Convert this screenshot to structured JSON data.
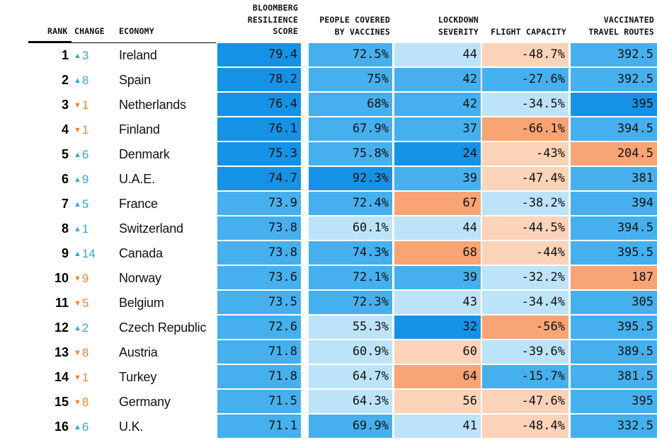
{
  "chart_data": {
    "type": "table",
    "colors": {
      "up": "#3ba2e4",
      "down": "#f5822a",
      "blue_dark": "#1592e6",
      "blue_mid": "#46b0ee",
      "blue_light": "#bde3f8",
      "orange_light": "#fbd3b8",
      "orange_dark": "#f9a474"
    },
    "headers": {
      "rank": "RANK",
      "change": "CHANGE",
      "economy": "ECONOMY",
      "score": [
        "BLOOMBERG",
        "RESILIENCE",
        "SCORE"
      ],
      "vaccines": [
        "PEOPLE COVERED",
        "BY VACCINES"
      ],
      "lockdown": [
        "LOCKDOWN",
        "SEVERITY"
      ],
      "flight": [
        "FLIGHT CAPACITY"
      ],
      "routes": [
        "VACCINATED",
        "TRAVEL ROUTES"
      ]
    },
    "rows": [
      {
        "rank": "1",
        "dir": "up",
        "change": "3",
        "economy": "Ireland",
        "score": "79.4",
        "vaccines": "72.5%",
        "lockdown": "44",
        "flight": "-48.7%",
        "routes": "392.5",
        "tones": [
          "blue_dark",
          "blue_mid",
          "blue_light",
          "orange_light",
          "blue_mid"
        ]
      },
      {
        "rank": "2",
        "dir": "up",
        "change": "8",
        "economy": "Spain",
        "score": "78.2",
        "vaccines": "75%",
        "lockdown": "42",
        "flight": "-27.6%",
        "routes": "392.5",
        "tones": [
          "blue_dark",
          "blue_mid",
          "blue_mid",
          "blue_mid",
          "blue_mid"
        ]
      },
      {
        "rank": "3",
        "dir": "down",
        "change": "1",
        "economy": "Netherlands",
        "score": "76.4",
        "vaccines": "68%",
        "lockdown": "42",
        "flight": "-34.5%",
        "routes": "395",
        "tones": [
          "blue_dark",
          "blue_mid",
          "blue_mid",
          "blue_light",
          "blue_dark"
        ]
      },
      {
        "rank": "4",
        "dir": "down",
        "change": "1",
        "economy": "Finland",
        "score": "76.1",
        "vaccines": "67.9%",
        "lockdown": "37",
        "flight": "-66.1%",
        "routes": "394.5",
        "tones": [
          "blue_dark",
          "blue_mid",
          "blue_mid",
          "orange_dark",
          "blue_mid"
        ]
      },
      {
        "rank": "5",
        "dir": "up",
        "change": "6",
        "economy": "Denmark",
        "score": "75.3",
        "vaccines": "75.8%",
        "lockdown": "24",
        "flight": "-43%",
        "routes": "204.5",
        "tones": [
          "blue_dark",
          "blue_mid",
          "blue_dark",
          "orange_light",
          "orange_dark"
        ]
      },
      {
        "rank": "6",
        "dir": "up",
        "change": "9",
        "economy": "U.A.E.",
        "score": "74.7",
        "vaccines": "92.3%",
        "lockdown": "39",
        "flight": "-47.4%",
        "routes": "381",
        "tones": [
          "blue_dark",
          "blue_dark",
          "blue_mid",
          "orange_light",
          "blue_mid"
        ]
      },
      {
        "rank": "7",
        "dir": "up",
        "change": "5",
        "economy": "France",
        "score": "73.9",
        "vaccines": "72.4%",
        "lockdown": "67",
        "flight": "-38.2%",
        "routes": "394",
        "tones": [
          "blue_mid",
          "blue_mid",
          "orange_dark",
          "blue_light",
          "blue_mid"
        ]
      },
      {
        "rank": "8",
        "dir": "up",
        "change": "1",
        "economy": "Switzerland",
        "score": "73.8",
        "vaccines": "60.1%",
        "lockdown": "44",
        "flight": "-44.5%",
        "routes": "394.5",
        "tones": [
          "blue_mid",
          "blue_light",
          "blue_light",
          "orange_light",
          "blue_mid"
        ]
      },
      {
        "rank": "9",
        "dir": "up",
        "change": "14",
        "economy": "Canada",
        "score": "73.8",
        "vaccines": "74.3%",
        "lockdown": "68",
        "flight": "-44%",
        "routes": "395.5",
        "tones": [
          "blue_mid",
          "blue_mid",
          "orange_dark",
          "orange_light",
          "blue_mid"
        ]
      },
      {
        "rank": "10",
        "dir": "down",
        "change": "9",
        "economy": "Norway",
        "score": "73.6",
        "vaccines": "72.1%",
        "lockdown": "39",
        "flight": "-32.2%",
        "routes": "187",
        "tones": [
          "blue_mid",
          "blue_mid",
          "blue_mid",
          "blue_light",
          "orange_dark"
        ]
      },
      {
        "rank": "11",
        "dir": "down",
        "change": "5",
        "economy": "Belgium",
        "score": "73.5",
        "vaccines": "72.3%",
        "lockdown": "43",
        "flight": "-34.4%",
        "routes": "305",
        "tones": [
          "blue_mid",
          "blue_mid",
          "blue_light",
          "blue_light",
          "blue_mid"
        ]
      },
      {
        "rank": "12",
        "dir": "up",
        "change": "2",
        "economy": "Czech Republic",
        "score": "72.6",
        "vaccines": "55.3%",
        "lockdown": "32",
        "flight": "-56%",
        "routes": "395.5",
        "tones": [
          "blue_mid",
          "blue_light",
          "blue_dark",
          "orange_dark",
          "blue_mid"
        ]
      },
      {
        "rank": "13",
        "dir": "down",
        "change": "8",
        "economy": "Austria",
        "score": "71.8",
        "vaccines": "60.9%",
        "lockdown": "60",
        "flight": "-39.6%",
        "routes": "389.5",
        "tones": [
          "blue_mid",
          "blue_light",
          "orange_light",
          "blue_light",
          "blue_mid"
        ]
      },
      {
        "rank": "14",
        "dir": "down",
        "change": "1",
        "economy": "Turkey",
        "score": "71.8",
        "vaccines": "64.7%",
        "lockdown": "64",
        "flight": "-15.7%",
        "routes": "381.5",
        "tones": [
          "blue_mid",
          "blue_light",
          "orange_dark",
          "blue_mid",
          "blue_mid"
        ]
      },
      {
        "rank": "15",
        "dir": "down",
        "change": "8",
        "economy": "Germany",
        "score": "71.5",
        "vaccines": "64.3%",
        "lockdown": "56",
        "flight": "-47.6%",
        "routes": "395",
        "tones": [
          "blue_mid",
          "blue_light",
          "orange_light",
          "orange_light",
          "blue_mid"
        ]
      },
      {
        "rank": "16",
        "dir": "up",
        "change": "6",
        "economy": "U.K.",
        "score": "71.1",
        "vaccines": "69.9%",
        "lockdown": "41",
        "flight": "-48.4%",
        "routes": "332.5",
        "tones": [
          "blue_mid",
          "blue_mid",
          "blue_light",
          "orange_light",
          "blue_mid"
        ]
      }
    ]
  }
}
